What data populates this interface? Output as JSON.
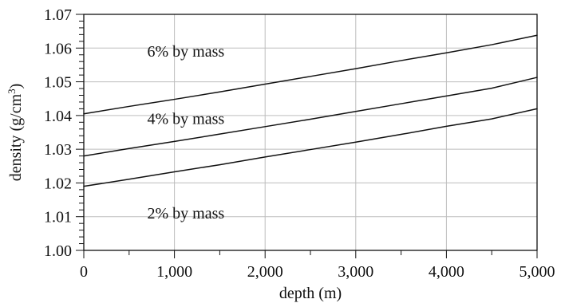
{
  "chart_data": {
    "type": "line",
    "title": "",
    "xlabel": "depth (m)",
    "ylabel": "density (g/cm³)",
    "ylabel_parts": {
      "main": "density (g/cm",
      "superscript": "3",
      "suffix": ")"
    },
    "xlim": [
      0,
      5000
    ],
    "ylim": [
      1.0,
      1.07
    ],
    "x_ticks": [
      0,
      1000,
      2000,
      3000,
      4000,
      5000
    ],
    "x_tick_labels": [
      "0",
      "1,000",
      "2,000",
      "3,000",
      "4,000",
      "5,000"
    ],
    "y_ticks": [
      1.0,
      1.01,
      1.02,
      1.03,
      1.04,
      1.05,
      1.06,
      1.07
    ],
    "y_tick_labels": [
      "1.00",
      "1.01",
      "1.02",
      "1.03",
      "1.04",
      "1.05",
      "1.06",
      "1.07"
    ],
    "grid": true,
    "series": [
      {
        "name": "6% by mass",
        "x": [
          0,
          500,
          1000,
          1500,
          2000,
          2500,
          3000,
          3500,
          4000,
          4500,
          5000
        ],
        "values": [
          1.0405,
          1.0427,
          1.0448,
          1.047,
          1.0493,
          1.0516,
          1.0539,
          1.0563,
          1.0586,
          1.061,
          1.0638
        ],
        "label_x": 700,
        "label_y": 1.0575
      },
      {
        "name": "4% by mass",
        "x": [
          0,
          500,
          1000,
          1500,
          2000,
          2500,
          3000,
          3500,
          4000,
          4500,
          5000
        ],
        "values": [
          1.028,
          1.0302,
          1.0323,
          1.0345,
          1.0367,
          1.0389,
          1.0412,
          1.0435,
          1.0458,
          1.0481,
          1.0513
        ],
        "label_x": 700,
        "label_y": 1.0375
      },
      {
        "name": "2% by mass",
        "x": [
          0,
          500,
          1000,
          1500,
          2000,
          2500,
          3000,
          3500,
          4000,
          4500,
          5000
        ],
        "values": [
          1.019,
          1.0211,
          1.0233,
          1.0254,
          1.0277,
          1.0299,
          1.0321,
          1.0344,
          1.0368,
          1.039,
          1.042
        ],
        "label_x": 700,
        "label_y": 1.0095
      }
    ],
    "colors": {
      "background": "#ffffff",
      "grid": "#bdbdbd",
      "axis": "#111111",
      "line": "#111111",
      "text": "#111111"
    }
  }
}
